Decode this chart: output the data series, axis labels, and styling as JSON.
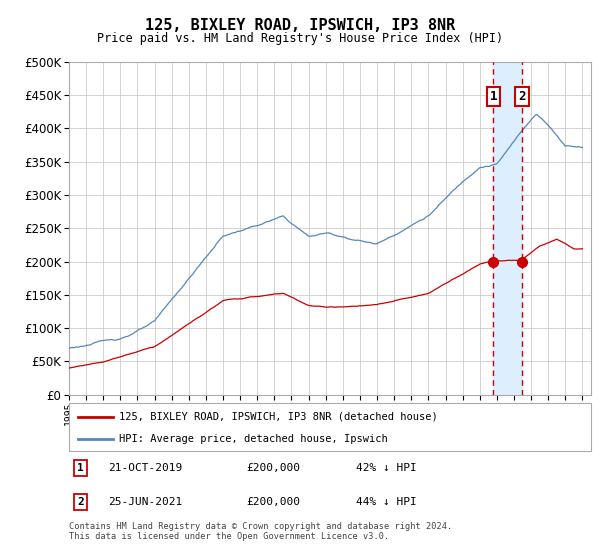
{
  "title": "125, BIXLEY ROAD, IPSWICH, IP3 8NR",
  "subtitle": "Price paid vs. HM Land Registry's House Price Index (HPI)",
  "footer": "Contains HM Land Registry data © Crown copyright and database right 2024.\nThis data is licensed under the Open Government Licence v3.0.",
  "legend_line1": "125, BIXLEY ROAD, IPSWICH, IP3 8NR (detached house)",
  "legend_line2": "HPI: Average price, detached house, Ipswich",
  "table": [
    {
      "num": "1",
      "date": "21-OCT-2019",
      "price": "£200,000",
      "hpi": "42% ↓ HPI"
    },
    {
      "num": "2",
      "date": "25-JUN-2021",
      "price": "£200,000",
      "hpi": "44% ↓ HPI"
    }
  ],
  "marker1_year": 2019.8,
  "marker2_year": 2021.45,
  "sale1_price": 200000,
  "sale2_price": 200000,
  "red_color": "#cc0000",
  "blue_color": "#5588bb",
  "shade_color": "#ddeeff",
  "grid_color": "#cccccc",
  "ylim": [
    0,
    500000
  ],
  "xlim_start": 1995.0,
  "xlim_end": 2025.5,
  "yticks": [
    0,
    50000,
    100000,
    150000,
    200000,
    250000,
    300000,
    350000,
    400000,
    450000,
    500000
  ]
}
